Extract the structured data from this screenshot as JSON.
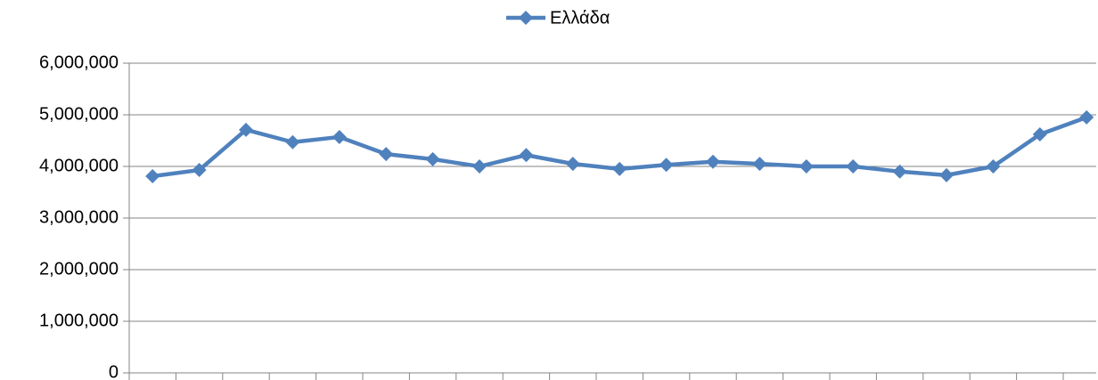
{
  "chart_data": {
    "type": "line",
    "categories": [
      null,
      null,
      null,
      null,
      null,
      null,
      null,
      null,
      null,
      null,
      null,
      null,
      null,
      null,
      null,
      null,
      null,
      null,
      null,
      null,
      null
    ],
    "series": [
      {
        "name": "Ελλάδα",
        "color": "#4f81bd",
        "values": [
          3810000,
          3930000,
          4710000,
          4470000,
          4570000,
          4240000,
          4140000,
          4000000,
          4220000,
          4050000,
          3950000,
          4030000,
          4090000,
          4050000,
          4000000,
          4000000,
          3900000,
          3830000,
          4000000,
          4620000,
          4950000
        ]
      }
    ],
    "ylim": [
      0,
      6000000
    ],
    "yticks": [
      0,
      {
        "value": 1000000,
        "label": "1,000,000"
      },
      {
        "value": 2000000,
        "label": "2,000,000"
      },
      {
        "value": 3000000,
        "label": "3,000,000"
      },
      {
        "value": 4000000,
        "label": "4,000,000"
      },
      {
        "value": 5000000,
        "label": "5,000,000"
      },
      {
        "value": 6000000,
        "label": "6,000,000"
      }
    ],
    "grid": true,
    "legend": "top"
  }
}
